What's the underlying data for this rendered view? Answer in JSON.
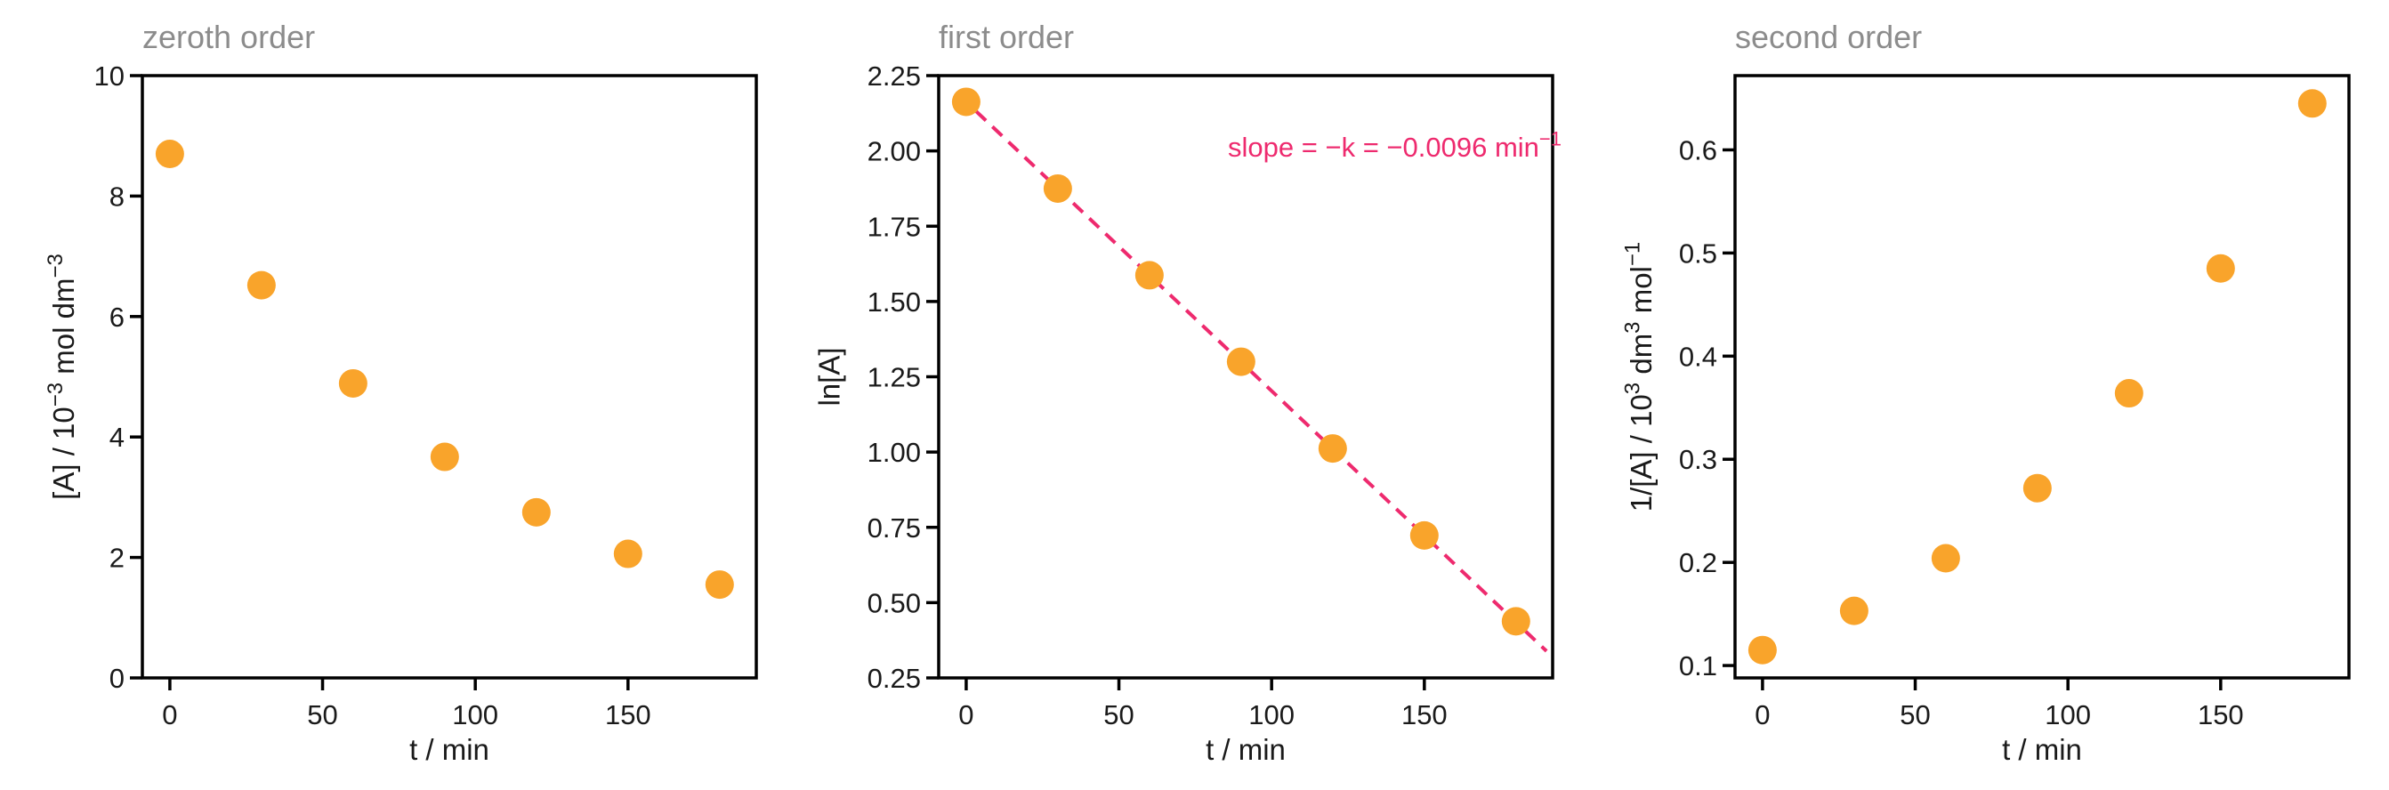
{
  "page": {
    "background": "#FFFFFF"
  },
  "style": {
    "marker_color": "#F9A42B",
    "fit_line_color": "#EE2A6E",
    "annotation_color": "#EE2A6E",
    "title_color": "#8C8C8C",
    "axis_color": "#000000",
    "tick_label_color": "#1A1A1A"
  },
  "chart_data": [
    {
      "type": "scatter",
      "title": "zeroth order",
      "xlabel_parts": [
        {
          "t": "t / min"
        }
      ],
      "ylabel_parts": [
        {
          "t": "[A] / 10"
        },
        {
          "t": "−3",
          "sup": true
        },
        {
          "t": " mol dm"
        },
        {
          "t": "−3",
          "sup": true
        }
      ],
      "x": [
        0,
        30,
        60,
        90,
        120,
        150,
        180
      ],
      "y": [
        8.7,
        6.52,
        4.89,
        3.67,
        2.75,
        2.06,
        1.55
      ],
      "xlim": [
        -9,
        192
      ],
      "ylim": [
        0,
        10
      ],
      "xticks": [
        0,
        50,
        100,
        150
      ],
      "xticklabels": [
        "0",
        "50",
        "100",
        "150"
      ],
      "yticks": [
        0,
        2,
        4,
        6,
        8,
        10
      ],
      "yticklabels": [
        "0",
        "2",
        "4",
        "6",
        "8",
        "10"
      ],
      "grid": false,
      "legend": null
    },
    {
      "type": "scatter",
      "title": "first order",
      "xlabel_parts": [
        {
          "t": "t / min"
        }
      ],
      "ylabel_parts": [
        {
          "t": "ln[A]"
        }
      ],
      "x": [
        0,
        30,
        60,
        90,
        120,
        150,
        180
      ],
      "y": [
        2.163,
        1.875,
        1.587,
        1.3,
        1.012,
        0.723,
        0.438
      ],
      "xlim": [
        -9,
        192
      ],
      "ylim": [
        0.25,
        2.25
      ],
      "xticks": [
        0,
        50,
        100,
        150
      ],
      "xticklabels": [
        "0",
        "50",
        "100",
        "150"
      ],
      "yticks": [
        0.25,
        0.5,
        0.75,
        1.0,
        1.25,
        1.5,
        1.75,
        2.0,
        2.25
      ],
      "yticklabels": [
        "0.25",
        "0.50",
        "0.75",
        "1.00",
        "1.25",
        "1.50",
        "1.75",
        "2.00",
        "2.25"
      ],
      "grid": false,
      "legend": null,
      "fit_line": {
        "x": [
          -2,
          190
        ],
        "y": [
          2.182,
          0.339
        ],
        "slope_per_min": -0.0096,
        "style": "dashed"
      },
      "annotation": {
        "parts": [
          {
            "t": "slope = −k = −0.0096 min"
          },
          {
            "t": "−1",
            "sup": true
          }
        ]
      }
    },
    {
      "type": "scatter",
      "title": "second order",
      "xlabel_parts": [
        {
          "t": "t / min"
        }
      ],
      "ylabel_parts": [
        {
          "t": "1/[A] / 10"
        },
        {
          "t": "3",
          "sup": true
        },
        {
          "t": " dm"
        },
        {
          "t": "3",
          "sup": true
        },
        {
          "t": " mol"
        },
        {
          "t": "−1",
          "sup": true
        }
      ],
      "x": [
        0,
        30,
        60,
        90,
        120,
        150,
        180
      ],
      "y": [
        0.115,
        0.153,
        0.204,
        0.272,
        0.364,
        0.485,
        0.645
      ],
      "xlim": [
        -9,
        192
      ],
      "ylim": [
        0.088,
        0.672
      ],
      "xticks": [
        0,
        50,
        100,
        150
      ],
      "xticklabels": [
        "0",
        "50",
        "100",
        "150"
      ],
      "yticks": [
        0.1,
        0.2,
        0.3,
        0.4,
        0.5,
        0.6
      ],
      "yticklabels": [
        "0.1",
        "0.2",
        "0.3",
        "0.4",
        "0.5",
        "0.6"
      ],
      "grid": false,
      "legend": null
    }
  ]
}
